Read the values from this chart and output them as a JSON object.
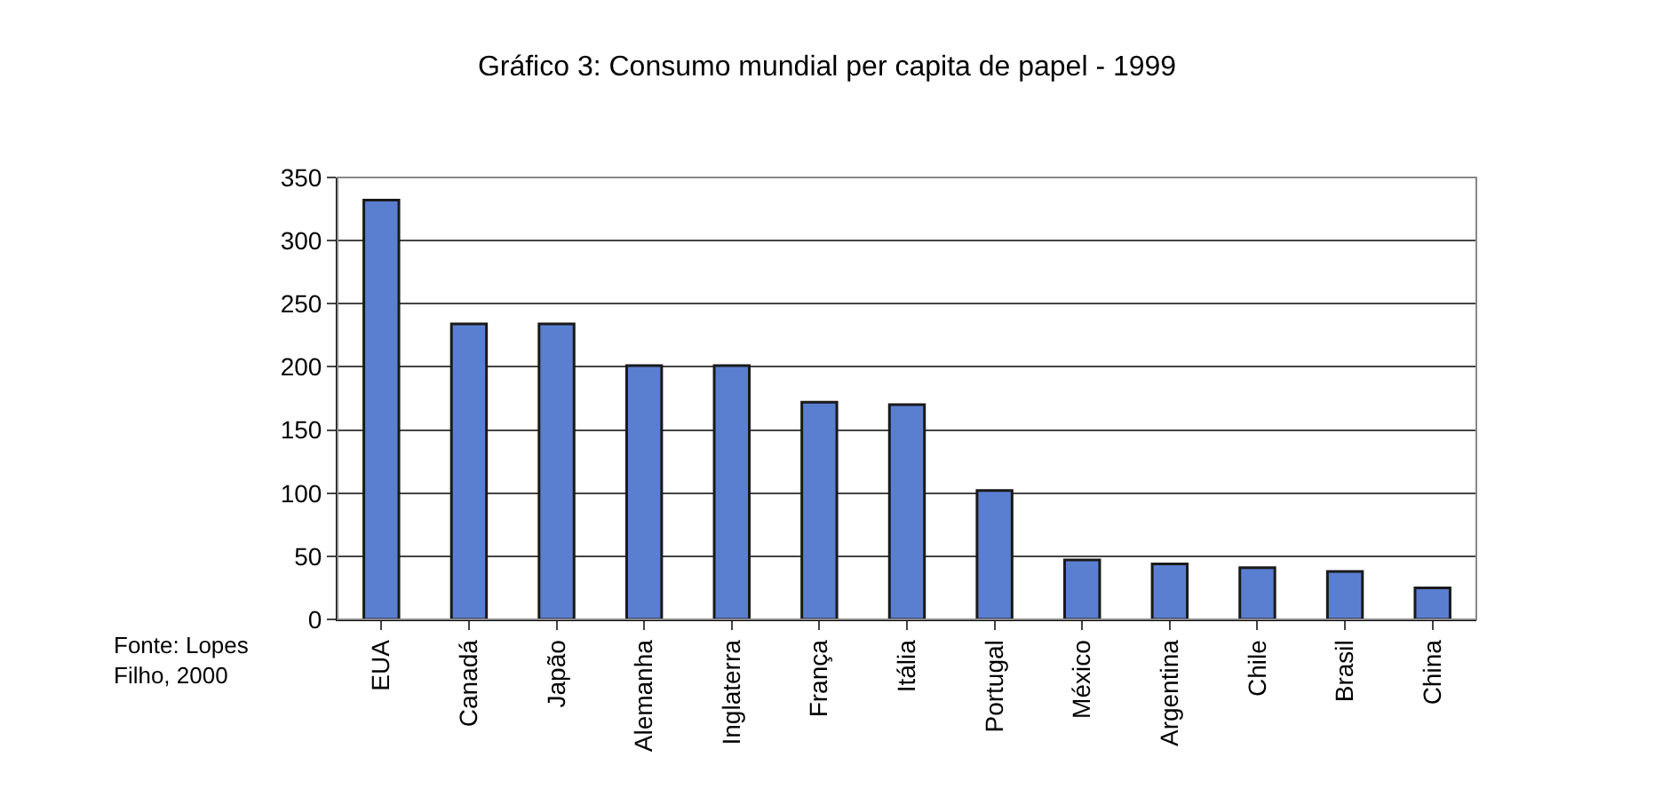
{
  "chart_data": {
    "type": "bar",
    "title": "Gráfico 3: Consumo mundial per capita de papel - 1999",
    "categories": [
      "EUA",
      "Canadá",
      "Japão",
      "Alemanha",
      "Inglaterra",
      "França",
      "Itália",
      "Portugal",
      "México",
      "Argentina",
      "Chile",
      "Brasil",
      "China"
    ],
    "values": [
      332,
      234,
      234,
      201,
      201,
      172,
      170,
      102,
      47,
      44,
      41,
      38,
      25
    ],
    "color": "#5b7fd0",
    "ylim": [
      0,
      350
    ],
    "yticks": [
      0,
      50,
      100,
      150,
      200,
      250,
      300,
      350
    ],
    "grid": "y",
    "annotations": [
      "Fonte: Lopes\nFilho, 2000"
    ]
  }
}
